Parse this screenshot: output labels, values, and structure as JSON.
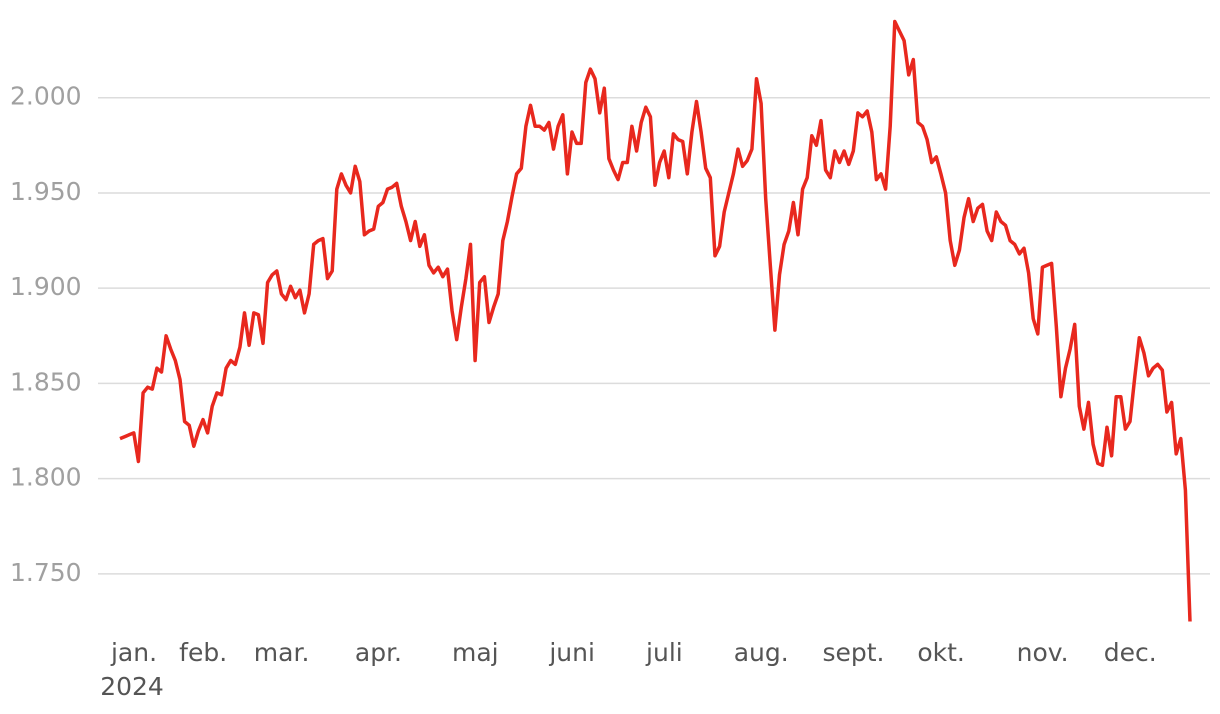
{
  "chart_data": {
    "type": "line",
    "categories": [
      "jan.",
      null,
      null,
      null,
      null,
      null,
      null,
      null,
      null,
      null,
      null,
      null,
      null,
      null,
      null,
      "feb.",
      null,
      null,
      null,
      null,
      null,
      null,
      null,
      null,
      null,
      null,
      null,
      null,
      null,
      null,
      null,
      null,
      "mar.",
      null,
      null,
      null,
      null,
      null,
      null,
      null,
      null,
      null,
      null,
      null,
      null,
      null,
      null,
      null,
      null,
      null,
      null,
      null,
      null,
      "apr.",
      null,
      null,
      null,
      null,
      null,
      null,
      null,
      null,
      null,
      null,
      null,
      null,
      null,
      null,
      null,
      null,
      null,
      null,
      null,
      null,
      "maj",
      null,
      null,
      null,
      null,
      null,
      null,
      null,
      null,
      null,
      null,
      null,
      null,
      null,
      null,
      null,
      null,
      null,
      null,
      null,
      null,
      "juni",
      null,
      null,
      null,
      null,
      null,
      null,
      null,
      null,
      null,
      null,
      null,
      null,
      null,
      null,
      null,
      null,
      null,
      null,
      null,
      "juli",
      null,
      null,
      null,
      null,
      null,
      null,
      null,
      null,
      null,
      null,
      null,
      null,
      null,
      null,
      null,
      null,
      null,
      null,
      null,
      null,
      "aug.",
      null,
      null,
      null,
      null,
      null,
      null,
      null,
      null,
      null,
      null,
      null,
      null,
      null,
      null,
      null,
      null,
      null,
      null,
      null,
      "sept.",
      null,
      null,
      null,
      null,
      null,
      null,
      null,
      null,
      null,
      null,
      null,
      null,
      null,
      null,
      null,
      null,
      null,
      null,
      "okt.",
      null,
      null,
      null,
      null,
      null,
      null,
      null,
      null,
      null,
      null,
      null,
      null,
      null,
      null,
      null,
      null,
      null,
      null,
      null,
      null,
      null,
      "nov.",
      null,
      null,
      null,
      null,
      null,
      null,
      null,
      null,
      null,
      null,
      null,
      null,
      null,
      null,
      null,
      null,
      null,
      null,
      "dec.",
      null,
      null,
      null,
      null,
      null,
      null,
      null,
      null,
      null,
      null,
      null,
      null,
      null,
      null,
      null,
      null
    ],
    "year_label": "2024",
    "series": [
      {
        "color": "#e8281e",
        "values": [
          1821,
          1822,
          1823,
          1824,
          1809,
          1845,
          1848,
          1847,
          1858,
          1856,
          1875,
          1868,
          1862,
          1852,
          1830,
          1828,
          1817,
          1825,
          1831,
          1824,
          1838,
          1845,
          1844,
          1858,
          1862,
          1860,
          1869,
          1887,
          1870,
          1887,
          1886,
          1871,
          1903,
          1907,
          1909,
          1897,
          1894,
          1901,
          1895,
          1899,
          1887,
          1897,
          1923,
          1925,
          1926,
          1905,
          1909,
          1952,
          1960,
          1954,
          1950,
          1964,
          1956,
          1928,
          1930,
          1931,
          1943,
          1945,
          1952,
          1953,
          1955,
          1943,
          1935,
          1925,
          1935,
          1922,
          1928,
          1912,
          1908,
          1911,
          1906,
          1910,
          1888,
          1873,
          1890,
          1905,
          1923,
          1862,
          1903,
          1906,
          1882,
          1890,
          1897,
          1925,
          1935,
          1948,
          1960,
          1963,
          1985,
          1996,
          1985,
          1985,
          1983,
          1987,
          1973,
          1985,
          1991,
          1960,
          1982,
          1976,
          1976,
          2008,
          2015,
          2010,
          1992,
          2005,
          1968,
          1962,
          1957,
          1966,
          1966,
          1985,
          1972,
          1987,
          1995,
          1990,
          1954,
          1966,
          1972,
          1958,
          1981,
          1978,
          1977,
          1960,
          1982,
          1998,
          1982,
          1963,
          1958,
          1917,
          1922,
          1940,
          1950,
          1960,
          1973,
          1964,
          1967,
          1973,
          2010,
          1997,
          1947,
          1912,
          1878,
          1907,
          1923,
          1930,
          1945,
          1928,
          1952,
          1958,
          1980,
          1975,
          1988,
          1962,
          1958,
          1972,
          1966,
          1972,
          1965,
          1972,
          1992,
          1990,
          1993,
          1982,
          1957,
          1960,
          1952,
          1985,
          2040,
          2035,
          2030,
          2012,
          2020,
          1987,
          1985,
          1978,
          1966,
          1969,
          1960,
          1950,
          1925,
          1912,
          1920,
          1937,
          1947,
          1935,
          1942,
          1944,
          1930,
          1925,
          1940,
          1935,
          1933,
          1925,
          1923,
          1918,
          1921,
          1908,
          1884,
          1876,
          1911,
          1912,
          1913,
          1880,
          1843,
          1858,
          1868,
          1881,
          1838,
          1826,
          1840,
          1818,
          1808,
          1807,
          1827,
          1812,
          1843,
          1843,
          1826,
          1830,
          1853,
          1874,
          1866,
          1854,
          1858,
          1860,
          1857,
          1835,
          1840,
          1813,
          1821,
          1794,
          1725
        ]
      }
    ],
    "ylim": [
      1720,
      2045
    ],
    "yticks": [
      {
        "value": 1750,
        "label": "1.750"
      },
      {
        "value": 1800,
        "label": "1.800"
      },
      {
        "value": 1850,
        "label": "1.850"
      },
      {
        "value": 1900,
        "label": "1.900"
      },
      {
        "value": 1950,
        "label": "1.950"
      },
      {
        "value": 2000,
        "label": "2.000"
      }
    ],
    "grid": true
  }
}
